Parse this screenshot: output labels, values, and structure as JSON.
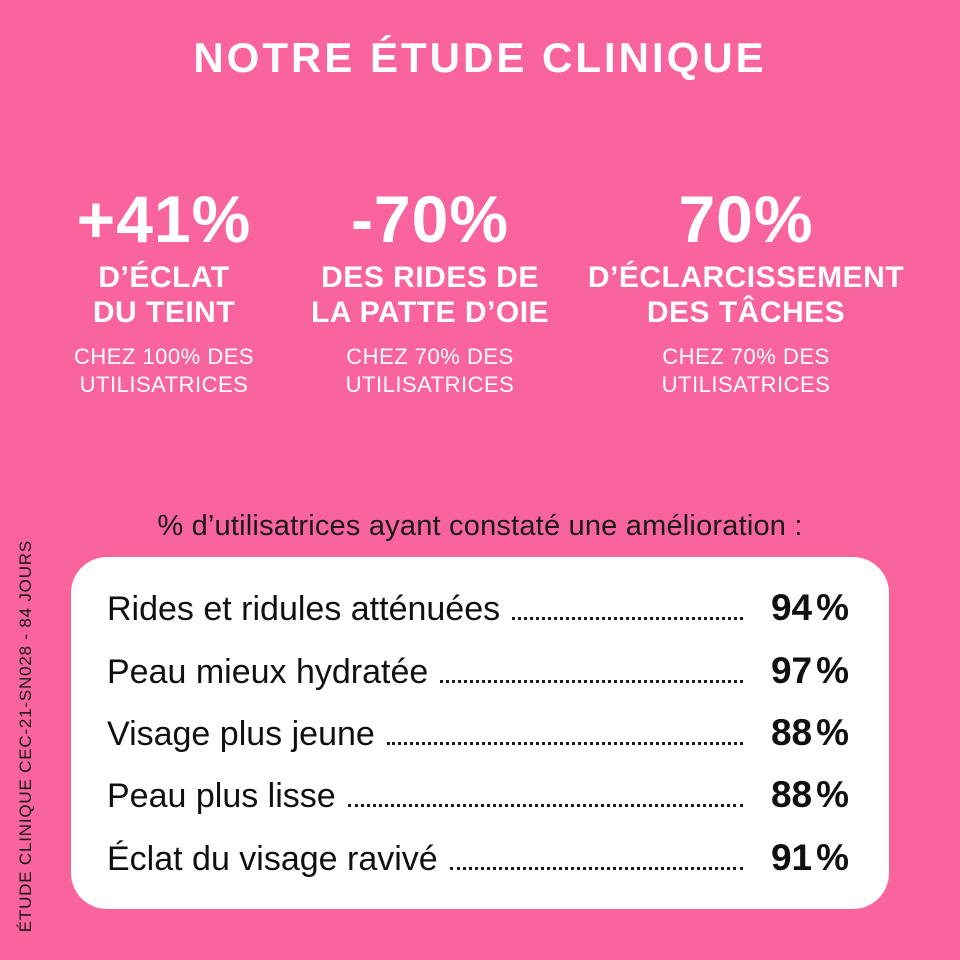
{
  "page": {
    "background_color": "#F9649F",
    "light_text_color": "#FFFFFF",
    "dark_text_color": "#141414"
  },
  "header": {
    "title": "NOTRE ÉTUDE CLINIQUE"
  },
  "stats": [
    {
      "value": "+41%",
      "label_lines": [
        "D’ÉCLAT",
        "DU TEINT"
      ],
      "sub_lines": [
        "CHEZ 100% DES",
        "UTILISATRICES"
      ]
    },
    {
      "value": "-70%",
      "label_lines": [
        "DES RIDES DE",
        "LA PATTE D’OIE"
      ],
      "sub_lines": [
        "CHEZ 70% DES",
        "UTILISATRICES"
      ]
    },
    {
      "value": "70%",
      "label_lines": [
        "D’ÉCLARCISSEMENT",
        "DES TÂCHES"
      ],
      "sub_lines": [
        "CHEZ 70% DES",
        "UTILISATRICES"
      ]
    }
  ],
  "list": {
    "heading": "% d’utilisatrices ayant constaté une amélioration :",
    "unit": "%",
    "rows": [
      {
        "label": "Rides et ridules atténuées",
        "value": "94"
      },
      {
        "label": "Peau mieux hydratée",
        "value": "97"
      },
      {
        "label": "Visage plus jeune",
        "value": "88"
      },
      {
        "label": "Peau plus lisse",
        "value": "88"
      },
      {
        "label": "Éclat du visage ravivé",
        "value": "91"
      }
    ]
  },
  "footnote": {
    "text": "ÉTUDE CLINIQUE CEC-21-SN028 - 84 JOURS"
  },
  "chart_data": {
    "type": "table",
    "title": "NOTRE ÉTUDE CLINIQUE",
    "subtitle": "% d’utilisatrices ayant constaté une amélioration :",
    "categories": [
      "Rides et ridules atténuées",
      "Peau mieux hydratée",
      "Visage plus jeune",
      "Peau plus lisse",
      "Éclat du visage ravivé"
    ],
    "values": [
      94,
      97,
      88,
      88,
      91
    ],
    "unit": "%",
    "headline_stats": [
      {
        "value": "+41%",
        "metric": "D’ÉCLAT DU TEINT",
        "population": "CHEZ 100% DES UTILISATRICES"
      },
      {
        "value": "-70%",
        "metric": "DES RIDES DE LA PATTE D’OIE",
        "population": "CHEZ 70% DES UTILISATRICES"
      },
      {
        "value": "70%",
        "metric": "D’ÉCLARCISSEMENT DES TÂCHES",
        "population": "CHEZ 70% DES UTILISATRICES"
      }
    ],
    "source_note": "ÉTUDE CLINIQUE CEC-21-SN028 - 84 JOURS"
  }
}
